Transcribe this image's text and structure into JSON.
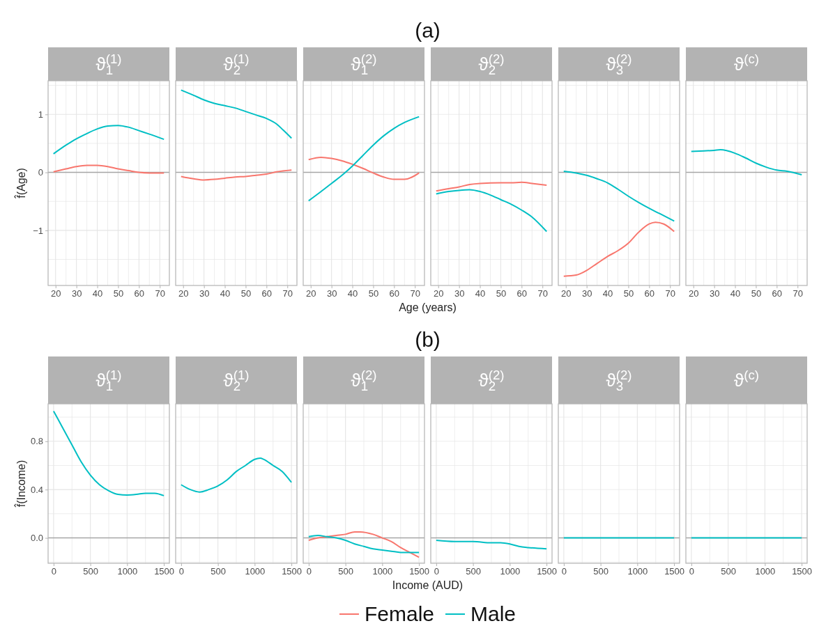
{
  "chart_data": [
    {
      "type": "line",
      "title": "ϑ$_{1}$$^{(1)}$",
      "annotations": [
        "(a)"
      ],
      "ylabel": "f̂(Age)",
      "xlim": [
        16.4,
        74.6
      ],
      "xticks": [
        20,
        {
          "value": 25,
          "label": null
        },
        30,
        {
          "value": 35,
          "label": null
        },
        40,
        {
          "value": 45,
          "label": null
        },
        50,
        {
          "value": 55,
          "label": null
        },
        60,
        {
          "value": 65,
          "label": null
        },
        70
      ],
      "ylim": [
        -1.95,
        1.58
      ],
      "yticks": [
        {
          "value": -1.5,
          "label": null
        },
        {
          "value": -1,
          "label": "−1"
        },
        {
          "value": -0.5,
          "label": null
        },
        0,
        {
          "value": 0.5,
          "label": null
        },
        1,
        {
          "value": 1.5,
          "label": null
        }
      ],
      "grid": true,
      "ref_lines": [
        {
          "axis": "y",
          "value": 0,
          "color": "#a6a6a6"
        }
      ],
      "series": [
        {
          "color": "#f8766d",
          "x": [
            19,
            25,
            30,
            35,
            40,
            45,
            50,
            55,
            60,
            65,
            72
          ],
          "values": [
            0.01,
            0.06,
            0.1,
            0.12,
            0.12,
            0.1,
            0.06,
            0.03,
            0,
            -0.01,
            -0.01
          ]
        },
        {
          "color": "#00bfc4",
          "x": [
            19,
            25,
            30,
            35,
            40,
            45,
            50,
            55,
            60,
            65,
            72
          ],
          "values": [
            0.32,
            0.47,
            0.58,
            0.67,
            0.75,
            0.8,
            0.81,
            0.78,
            0.72,
            0.66,
            0.57
          ]
        }
      ]
    },
    {
      "type": "line",
      "title": "ϑ$_{2}$$^{(1)}$",
      "tick_labels": "x",
      "xlim": [
        16.4,
        74.6
      ],
      "xticks": [
        20,
        {
          "value": 25,
          "label": null
        },
        30,
        {
          "value": 35,
          "label": null
        },
        40,
        {
          "value": 45,
          "label": null
        },
        50,
        {
          "value": 55,
          "label": null
        },
        60,
        {
          "value": 65,
          "label": null
        },
        70
      ],
      "ylim": [
        -1.95,
        1.58
      ],
      "yticks": [
        {
          "value": -1.5,
          "label": null
        },
        {
          "value": -1,
          "label": null
        },
        {
          "value": -0.5,
          "label": null
        },
        {
          "value": 0,
          "label": null
        },
        {
          "value": 0.5,
          "label": null
        },
        {
          "value": 1,
          "label": null
        },
        {
          "value": 1.5,
          "label": null
        }
      ],
      "grid": true,
      "ref_lines": [
        {
          "axis": "y",
          "value": 0,
          "color": "#a6a6a6"
        }
      ],
      "series": [
        {
          "color": "#f8766d",
          "x": [
            19,
            25,
            30,
            35,
            40,
            45,
            50,
            55,
            60,
            65,
            72
          ],
          "values": [
            -0.07,
            -0.11,
            -0.13,
            -0.12,
            -0.1,
            -0.08,
            -0.07,
            -0.05,
            -0.03,
            0.01,
            0.04
          ]
        },
        {
          "color": "#00bfc4",
          "x": [
            19,
            25,
            30,
            35,
            40,
            45,
            50,
            55,
            60,
            65,
            68,
            72
          ],
          "values": [
            1.42,
            1.33,
            1.25,
            1.19,
            1.15,
            1.11,
            1.05,
            0.99,
            0.93,
            0.83,
            0.73,
            0.59
          ]
        }
      ]
    },
    {
      "type": "line",
      "title": "ϑ$_{1}$$^{(2)}$",
      "xlabel": "Age (years)",
      "tick_labels": "x",
      "xlim": [
        16.4,
        74.6
      ],
      "xticks": [
        20,
        {
          "value": 25,
          "label": null
        },
        30,
        {
          "value": 35,
          "label": null
        },
        40,
        {
          "value": 45,
          "label": null
        },
        50,
        {
          "value": 55,
          "label": null
        },
        60,
        {
          "value": 65,
          "label": null
        },
        70
      ],
      "ylim": [
        -1.95,
        1.58
      ],
      "yticks": [
        {
          "value": -1.5,
          "label": null
        },
        {
          "value": -1,
          "label": null
        },
        {
          "value": -0.5,
          "label": null
        },
        {
          "value": 0,
          "label": null
        },
        {
          "value": 0.5,
          "label": null
        },
        {
          "value": 1,
          "label": null
        },
        {
          "value": 1.5,
          "label": null
        }
      ],
      "grid": true,
      "ref_lines": [
        {
          "axis": "y",
          "value": 0,
          "color": "#a6a6a6"
        }
      ],
      "series": [
        {
          "color": "#f8766d",
          "x": [
            19,
            25,
            30,
            35,
            40,
            45,
            50,
            55,
            60,
            65,
            72
          ],
          "values": [
            0.22,
            0.26,
            0.24,
            0.2,
            0.14,
            0.07,
            -0.01,
            -0.08,
            -0.12,
            -0.12,
            -0.01
          ]
        },
        {
          "color": "#00bfc4",
          "x": [
            19,
            25,
            30,
            35,
            40,
            45,
            50,
            55,
            60,
            65,
            72
          ],
          "values": [
            -0.49,
            -0.33,
            -0.19,
            -0.05,
            0.11,
            0.29,
            0.47,
            0.63,
            0.76,
            0.86,
            0.96
          ]
        }
      ]
    },
    {
      "type": "line",
      "title": "ϑ$_{2}$$^{(2)}$",
      "tick_labels": "x",
      "xlim": [
        16.4,
        74.6
      ],
      "xticks": [
        20,
        {
          "value": 25,
          "label": null
        },
        30,
        {
          "value": 35,
          "label": null
        },
        40,
        {
          "value": 45,
          "label": null
        },
        50,
        {
          "value": 55,
          "label": null
        },
        60,
        {
          "value": 65,
          "label": null
        },
        70
      ],
      "ylim": [
        -1.95,
        1.58
      ],
      "yticks": [
        {
          "value": -1.5,
          "label": null
        },
        {
          "value": -1,
          "label": null
        },
        {
          "value": -0.5,
          "label": null
        },
        {
          "value": 0,
          "label": null
        },
        {
          "value": 0.5,
          "label": null
        },
        {
          "value": 1,
          "label": null
        },
        {
          "value": 1.5,
          "label": null
        }
      ],
      "grid": true,
      "ref_lines": [
        {
          "axis": "y",
          "value": 0,
          "color": "#a6a6a6"
        }
      ],
      "series": [
        {
          "color": "#f8766d",
          "x": [
            19,
            25,
            30,
            35,
            40,
            50,
            55,
            60,
            65,
            72
          ],
          "values": [
            -0.32,
            -0.28,
            -0.25,
            -0.21,
            -0.19,
            -0.18,
            -0.18,
            -0.17,
            -0.19,
            -0.22
          ]
        },
        {
          "color": "#00bfc4",
          "x": [
            19,
            25,
            30,
            35,
            40,
            45,
            50,
            55,
            60,
            65,
            72
          ],
          "values": [
            -0.37,
            -0.33,
            -0.31,
            -0.3,
            -0.33,
            -0.39,
            -0.47,
            -0.55,
            -0.65,
            -0.77,
            -1.02
          ]
        }
      ]
    },
    {
      "type": "line",
      "title": "ϑ$_{3}$$^{(2)}$",
      "tick_labels": "x",
      "xlim": [
        16.4,
        74.6
      ],
      "xticks": [
        20,
        {
          "value": 25,
          "label": null
        },
        30,
        {
          "value": 35,
          "label": null
        },
        40,
        {
          "value": 45,
          "label": null
        },
        50,
        {
          "value": 55,
          "label": null
        },
        60,
        {
          "value": 65,
          "label": null
        },
        70
      ],
      "ylim": [
        -1.95,
        1.58
      ],
      "yticks": [
        {
          "value": -1.5,
          "label": null
        },
        {
          "value": -1,
          "label": null
        },
        {
          "value": -0.5,
          "label": null
        },
        {
          "value": 0,
          "label": null
        },
        {
          "value": 0.5,
          "label": null
        },
        {
          "value": 1,
          "label": null
        },
        {
          "value": 1.5,
          "label": null
        }
      ],
      "grid": true,
      "ref_lines": [
        {
          "axis": "y",
          "value": 0,
          "color": "#a6a6a6"
        }
      ],
      "series": [
        {
          "color": "#f8766d",
          "x": [
            19,
            25,
            30,
            35,
            40,
            45,
            50,
            55,
            60,
            63,
            67,
            72
          ],
          "values": [
            -1.79,
            -1.77,
            -1.69,
            -1.57,
            -1.45,
            -1.35,
            -1.22,
            -1.03,
            -0.89,
            -0.86,
            -0.89,
            -1.02
          ]
        },
        {
          "color": "#00bfc4",
          "x": [
            19,
            25,
            30,
            35,
            40,
            45,
            50,
            55,
            60,
            65,
            72
          ],
          "values": [
            0.02,
            -0.01,
            -0.05,
            -0.11,
            -0.18,
            -0.29,
            -0.41,
            -0.52,
            -0.62,
            -0.71,
            -0.84
          ]
        }
      ]
    },
    {
      "type": "line",
      "title": "ϑ$^{(c)}$",
      "tick_labels": "x",
      "xlim": [
        16.4,
        74.6
      ],
      "xticks": [
        20,
        {
          "value": 25,
          "label": null
        },
        30,
        {
          "value": 35,
          "label": null
        },
        40,
        {
          "value": 45,
          "label": null
        },
        50,
        {
          "value": 55,
          "label": null
        },
        60,
        {
          "value": 65,
          "label": null
        },
        70
      ],
      "ylim": [
        -1.95,
        1.58
      ],
      "yticks": [
        {
          "value": -1.5,
          "label": null
        },
        {
          "value": -1,
          "label": null
        },
        {
          "value": -0.5,
          "label": null
        },
        {
          "value": 0,
          "label": null
        },
        {
          "value": 0.5,
          "label": null
        },
        {
          "value": 1,
          "label": null
        },
        {
          "value": 1.5,
          "label": null
        }
      ],
      "grid": true,
      "ref_lines": [
        {
          "axis": "y",
          "value": 0,
          "color": "#a6a6a6"
        }
      ],
      "series": [
        {
          "color": "#00bfc4",
          "x": [
            19,
            25,
            30,
            33,
            40,
            45,
            50,
            55,
            60,
            65,
            72
          ],
          "values": [
            0.36,
            0.37,
            0.38,
            0.39,
            0.33,
            0.25,
            0.16,
            0.09,
            0.04,
            0.02,
            -0.04
          ]
        }
      ]
    },
    {
      "type": "line",
      "title": "ϑ$_{1}$$^{(1)}$",
      "annotations": [
        "(b)"
      ],
      "ylabel": "f̂(Income)",
      "xlim": [
        -75,
        1575
      ],
      "xticks": [
        0,
        {
          "value": 250,
          "label": null
        },
        500,
        {
          "value": 750,
          "label": null
        },
        1000,
        {
          "value": 1250,
          "label": null
        },
        1500
      ],
      "ylim": [
        -0.21,
        1.11
      ],
      "yticks": [
        {
          "value": -0.2,
          "label": null
        },
        {
          "value": 0,
          "label": "0.0"
        },
        {
          "value": 0.2,
          "label": null
        },
        {
          "value": 0.4,
          "label": "0.4"
        },
        {
          "value": 0.6,
          "label": null
        },
        {
          "value": 0.8,
          "label": "0.8"
        },
        {
          "value": 1,
          "label": null
        }
      ],
      "grid": true,
      "ref_lines": [
        {
          "axis": "y",
          "value": 0,
          "color": "#a6a6a6"
        }
      ],
      "series": [
        {
          "color": "#00bfc4",
          "x": [
            0,
            125,
            250,
            375,
            500,
            625,
            750,
            875,
            1000,
            1125,
            1250,
            1375,
            1500
          ],
          "values": [
            1.05,
            0.91,
            0.77,
            0.63,
            0.52,
            0.44,
            0.39,
            0.36,
            0.355,
            0.36,
            0.37,
            0.37,
            0.35
          ]
        }
      ]
    },
    {
      "type": "line",
      "title": "ϑ$_{2}$$^{(1)}$",
      "tick_labels": "x",
      "xlim": [
        -75,
        1575
      ],
      "xticks": [
        0,
        {
          "value": 250,
          "label": null
        },
        500,
        {
          "value": 750,
          "label": null
        },
        1000,
        {
          "value": 1250,
          "label": null
        },
        1500
      ],
      "ylim": [
        -0.21,
        1.11
      ],
      "yticks": [
        {
          "value": -0.2,
          "label": null
        },
        {
          "value": 0,
          "label": null
        },
        {
          "value": 0.2,
          "label": null
        },
        {
          "value": 0.4,
          "label": null
        },
        {
          "value": 0.6,
          "label": null
        },
        {
          "value": 0.8,
          "label": null
        },
        {
          "value": 1,
          "label": null
        }
      ],
      "grid": true,
      "ref_lines": [
        {
          "axis": "y",
          "value": 0,
          "color": "#a6a6a6"
        }
      ],
      "series": [
        {
          "color": "#00bfc4",
          "x": [
            0,
            125,
            250,
            375,
            500,
            625,
            750,
            875,
            1000,
            1075,
            1125,
            1250,
            1375,
            1500
          ],
          "values": [
            0.44,
            0.4,
            0.38,
            0.4,
            0.43,
            0.48,
            0.55,
            0.6,
            0.65,
            0.66,
            0.65,
            0.6,
            0.55,
            0.46
          ]
        }
      ]
    },
    {
      "type": "line",
      "title": "ϑ$_{1}$$^{(2)}$",
      "xlabel": "Income (AUD)",
      "legend": "bottom",
      "tick_labels": "x",
      "xlim": [
        -75,
        1575
      ],
      "xticks": [
        0,
        {
          "value": 250,
          "label": null
        },
        500,
        {
          "value": 750,
          "label": null
        },
        1000,
        {
          "value": 1250,
          "label": null
        },
        1500
      ],
      "ylim": [
        -0.21,
        1.11
      ],
      "yticks": [
        {
          "value": -0.2,
          "label": null
        },
        {
          "value": 0,
          "label": null
        },
        {
          "value": 0.2,
          "label": null
        },
        {
          "value": 0.4,
          "label": null
        },
        {
          "value": 0.6,
          "label": null
        },
        {
          "value": 0.8,
          "label": null
        },
        {
          "value": 1,
          "label": null
        }
      ],
      "grid": true,
      "ref_lines": [
        {
          "axis": "y",
          "value": 0,
          "color": "#a6a6a6"
        }
      ],
      "series": [
        {
          "name": "Female",
          "color": "#f8766d",
          "x": [
            0,
            125,
            250,
            375,
            500,
            625,
            700,
            875,
            1000,
            1125,
            1250,
            1375,
            1500
          ],
          "values": [
            -0.02,
            0,
            0.01,
            0.02,
            0.03,
            0.05,
            0.05,
            0.03,
            0,
            -0.03,
            -0.08,
            -0.12,
            -0.16
          ]
        },
        {
          "name": "Male",
          "color": "#00bfc4",
          "x": [
            0,
            125,
            250,
            375,
            500,
            625,
            750,
            875,
            1000,
            1125,
            1250,
            1375,
            1500
          ],
          "values": [
            0.01,
            0.02,
            0.01,
            0,
            -0.02,
            -0.05,
            -0.07,
            -0.09,
            -0.1,
            -0.11,
            -0.12,
            -0.12,
            -0.12
          ]
        }
      ]
    },
    {
      "type": "line",
      "title": "ϑ$_{2}$$^{(2)}$",
      "tick_labels": "x",
      "xlim": [
        -75,
        1575
      ],
      "xticks": [
        0,
        {
          "value": 250,
          "label": null
        },
        500,
        {
          "value": 750,
          "label": null
        },
        1000,
        {
          "value": 1250,
          "label": null
        },
        1500
      ],
      "ylim": [
        -0.21,
        1.11
      ],
      "yticks": [
        {
          "value": -0.2,
          "label": null
        },
        {
          "value": 0,
          "label": null
        },
        {
          "value": 0.2,
          "label": null
        },
        {
          "value": 0.4,
          "label": null
        },
        {
          "value": 0.6,
          "label": null
        },
        {
          "value": 0.8,
          "label": null
        },
        {
          "value": 1,
          "label": null
        }
      ],
      "grid": true,
      "ref_lines": [
        {
          "axis": "y",
          "value": 0,
          "color": "#a6a6a6"
        }
      ],
      "series": [
        {
          "color": "#00bfc4",
          "x": [
            0,
            250,
            500,
            750,
            875,
            1000,
            1125,
            1250,
            1500
          ],
          "values": [
            -0.02,
            -0.03,
            -0.03,
            -0.04,
            -0.04,
            -0.05,
            -0.07,
            -0.08,
            -0.09
          ]
        }
      ]
    },
    {
      "type": "line",
      "title": "ϑ$_{3}$$^{(2)}$",
      "tick_labels": "x",
      "xlim": [
        -75,
        1575
      ],
      "xticks": [
        0,
        {
          "value": 250,
          "label": null
        },
        500,
        {
          "value": 750,
          "label": null
        },
        1000,
        {
          "value": 1250,
          "label": null
        },
        1500
      ],
      "ylim": [
        -0.21,
        1.11
      ],
      "yticks": [
        {
          "value": -0.2,
          "label": null
        },
        {
          "value": 0,
          "label": null
        },
        {
          "value": 0.2,
          "label": null
        },
        {
          "value": 0.4,
          "label": null
        },
        {
          "value": 0.6,
          "label": null
        },
        {
          "value": 0.8,
          "label": null
        },
        {
          "value": 1,
          "label": null
        }
      ],
      "grid": true,
      "ref_lines": [
        {
          "axis": "y",
          "value": 0,
          "color": "#a6a6a6"
        }
      ],
      "series": [
        {
          "color": "#00bfc4",
          "x": [
            0,
            1500
          ],
          "values": [
            0,
            0
          ]
        }
      ]
    },
    {
      "type": "line",
      "title": "ϑ$^{(c)}$",
      "tick_labels": "x",
      "xlim": [
        -75,
        1575
      ],
      "xticks": [
        0,
        {
          "value": 250,
          "label": null
        },
        500,
        {
          "value": 750,
          "label": null
        },
        1000,
        {
          "value": 1250,
          "label": null
        },
        1500
      ],
      "ylim": [
        -0.21,
        1.11
      ],
      "yticks": [
        {
          "value": -0.2,
          "label": null
        },
        {
          "value": 0,
          "label": null
        },
        {
          "value": 0.2,
          "label": null
        },
        {
          "value": 0.4,
          "label": null
        },
        {
          "value": 0.6,
          "label": null
        },
        {
          "value": 0.8,
          "label": null
        },
        {
          "value": 1,
          "label": null
        }
      ],
      "grid": true,
      "ref_lines": [
        {
          "axis": "y",
          "value": 0,
          "color": "#a6a6a6"
        }
      ],
      "series": [
        {
          "color": "#00bfc4",
          "x": [
            0,
            1500
          ],
          "values": [
            0,
            0
          ]
        }
      ]
    }
  ]
}
